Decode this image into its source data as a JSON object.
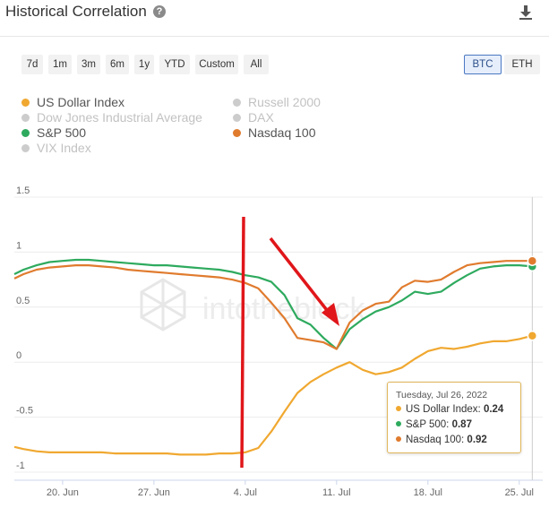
{
  "header": {
    "title": "Historical Correlation",
    "help_glyph": "?"
  },
  "ranges": [
    "7d",
    "1m",
    "3m",
    "6m",
    "1y",
    "YTD",
    "Custom",
    "All"
  ],
  "currencies": [
    {
      "label": "BTC",
      "active": true
    },
    {
      "label": "ETH",
      "active": false
    }
  ],
  "legend": [
    {
      "label": "US Dollar Index",
      "color": "#f0a830",
      "enabled": true
    },
    {
      "label": "Dow Jones Industrial Average",
      "color": "#cccccc",
      "enabled": false
    },
    {
      "label": "S&P 500",
      "color": "#2eaa5e",
      "enabled": true
    },
    {
      "label": "VIX Index",
      "color": "#cccccc",
      "enabled": false
    },
    {
      "label": "Russell 2000",
      "color": "#cccccc",
      "enabled": false
    },
    {
      "label": "DAX",
      "color": "#cccccc",
      "enabled": false
    },
    {
      "label": "Nasdaq 100",
      "color": "#e07b2e",
      "enabled": true
    }
  ],
  "watermark": "intotheblock",
  "tooltip": {
    "date": "Tuesday, Jul 26, 2022",
    "rows": [
      {
        "label": "US Dollar Index:",
        "value": "0.24",
        "color": "#f0a830"
      },
      {
        "label": "S&P 500:",
        "value": "0.87",
        "color": "#2eaa5e"
      },
      {
        "label": "Nasdaq 100:",
        "value": "0.92",
        "color": "#e07b2e"
      }
    ]
  },
  "chart_data": {
    "type": "line",
    "ylim": [
      -1,
      1.5
    ],
    "y_ticks": [
      "1.5",
      "1",
      "0.5",
      "0",
      "-0.5",
      "-1"
    ],
    "y_tick_values": [
      1.5,
      1,
      0.5,
      0,
      -0.5,
      -1
    ],
    "x_ticks": [
      "20. Jun",
      "27. Jun",
      "4. Jul",
      "11. Jul",
      "18. Jul",
      "25. Jul"
    ],
    "x_tick_days": [
      20,
      27,
      34,
      41,
      48,
      55
    ],
    "xlim_days": [
      16.3,
      56.8
    ],
    "x_days": [
      16.3,
      17,
      18,
      19,
      20,
      21,
      22,
      23,
      24,
      25,
      26,
      27,
      28,
      29,
      30,
      31,
      32,
      33,
      34,
      35,
      36,
      37,
      38,
      39,
      40,
      41,
      42,
      43,
      44,
      45,
      46,
      47,
      48,
      49,
      50,
      51,
      52,
      53,
      54,
      55,
      56
    ],
    "series": [
      {
        "name": "US Dollar Index",
        "color": "#f0a830",
        "values": [
          -0.77,
          -0.79,
          -0.81,
          -0.82,
          -0.82,
          -0.82,
          -0.82,
          -0.82,
          -0.83,
          -0.83,
          -0.83,
          -0.83,
          -0.83,
          -0.84,
          -0.84,
          -0.84,
          -0.83,
          -0.83,
          -0.82,
          -0.78,
          -0.63,
          -0.45,
          -0.28,
          -0.18,
          -0.11,
          -0.05,
          0.0,
          -0.07,
          -0.11,
          -0.09,
          -0.05,
          0.03,
          0.1,
          0.13,
          0.12,
          0.14,
          0.17,
          0.19,
          0.19,
          0.21,
          0.24
        ]
      },
      {
        "name": "S&P 500",
        "color": "#2eaa5e",
        "values": [
          0.8,
          0.84,
          0.88,
          0.91,
          0.92,
          0.93,
          0.93,
          0.92,
          0.91,
          0.9,
          0.89,
          0.88,
          0.88,
          0.87,
          0.86,
          0.85,
          0.84,
          0.82,
          0.79,
          0.77,
          0.73,
          0.61,
          0.4,
          0.34,
          0.22,
          0.12,
          0.3,
          0.39,
          0.46,
          0.5,
          0.56,
          0.64,
          0.62,
          0.64,
          0.72,
          0.79,
          0.85,
          0.87,
          0.88,
          0.88,
          0.87
        ]
      },
      {
        "name": "Nasdaq 100",
        "color": "#e07b2e",
        "values": [
          0.76,
          0.8,
          0.84,
          0.86,
          0.87,
          0.88,
          0.88,
          0.87,
          0.86,
          0.84,
          0.83,
          0.82,
          0.81,
          0.8,
          0.79,
          0.78,
          0.77,
          0.75,
          0.72,
          0.67,
          0.54,
          0.4,
          0.22,
          0.2,
          0.18,
          0.12,
          0.36,
          0.47,
          0.53,
          0.55,
          0.68,
          0.74,
          0.73,
          0.75,
          0.82,
          0.88,
          0.9,
          0.91,
          0.92,
          0.92,
          0.92
        ]
      }
    ]
  }
}
